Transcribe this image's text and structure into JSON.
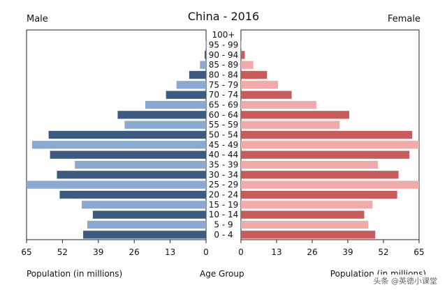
{
  "chart_data": {
    "type": "bar",
    "title": "China - 2016",
    "left_label": "Male",
    "right_label": "Female",
    "xlabel_left": "Population (in millions)",
    "xlabel_center": "Age Group",
    "xlabel_right": "Population (in millions)",
    "xlim": [
      -65,
      65
    ],
    "x_ticks": [
      "65",
      "52",
      "39",
      "26",
      "13",
      "0",
      "0",
      "13",
      "26",
      "39",
      "52",
      "65"
    ],
    "categories": [
      "100+",
      "95 - 99",
      "90 - 94",
      "85 - 89",
      "80 - 84",
      "75 - 79",
      "70 - 74",
      "65 - 69",
      "60 - 64",
      "55 - 59",
      "50 - 54",
      "45 - 49",
      "40 - 44",
      "35 - 39",
      "30 - 34",
      "25 - 29",
      "20 - 24",
      "15 - 19",
      "10 - 14",
      "5 - 9",
      "0 - 4"
    ],
    "series": [
      {
        "name": "Male",
        "values": [
          0.0,
          0.1,
          0.5,
          2.2,
          6.1,
          10.7,
          14.5,
          22.0,
          32.0,
          29.5,
          57.0,
          63.0,
          56.5,
          47.5,
          54.0,
          65.0,
          53.0,
          45.0,
          41.0,
          43.0,
          44.5
        ]
      },
      {
        "name": "Female",
        "values": [
          0.0,
          0.2,
          1.4,
          4.5,
          9.5,
          13.5,
          18.5,
          27.5,
          39.5,
          36.0,
          62.5,
          67.0,
          61.5,
          50.0,
          57.5,
          69.0,
          57.0,
          48.0,
          45.0,
          46.5,
          49.0
        ]
      }
    ],
    "colors": {
      "male_alt_a": "#3d5a80",
      "male_alt_b": "#8aa8d0",
      "female_alt_a": "#c95b5b",
      "female_alt_b": "#f0aaaa"
    }
  },
  "watermark": "头条 @英德小课堂"
}
